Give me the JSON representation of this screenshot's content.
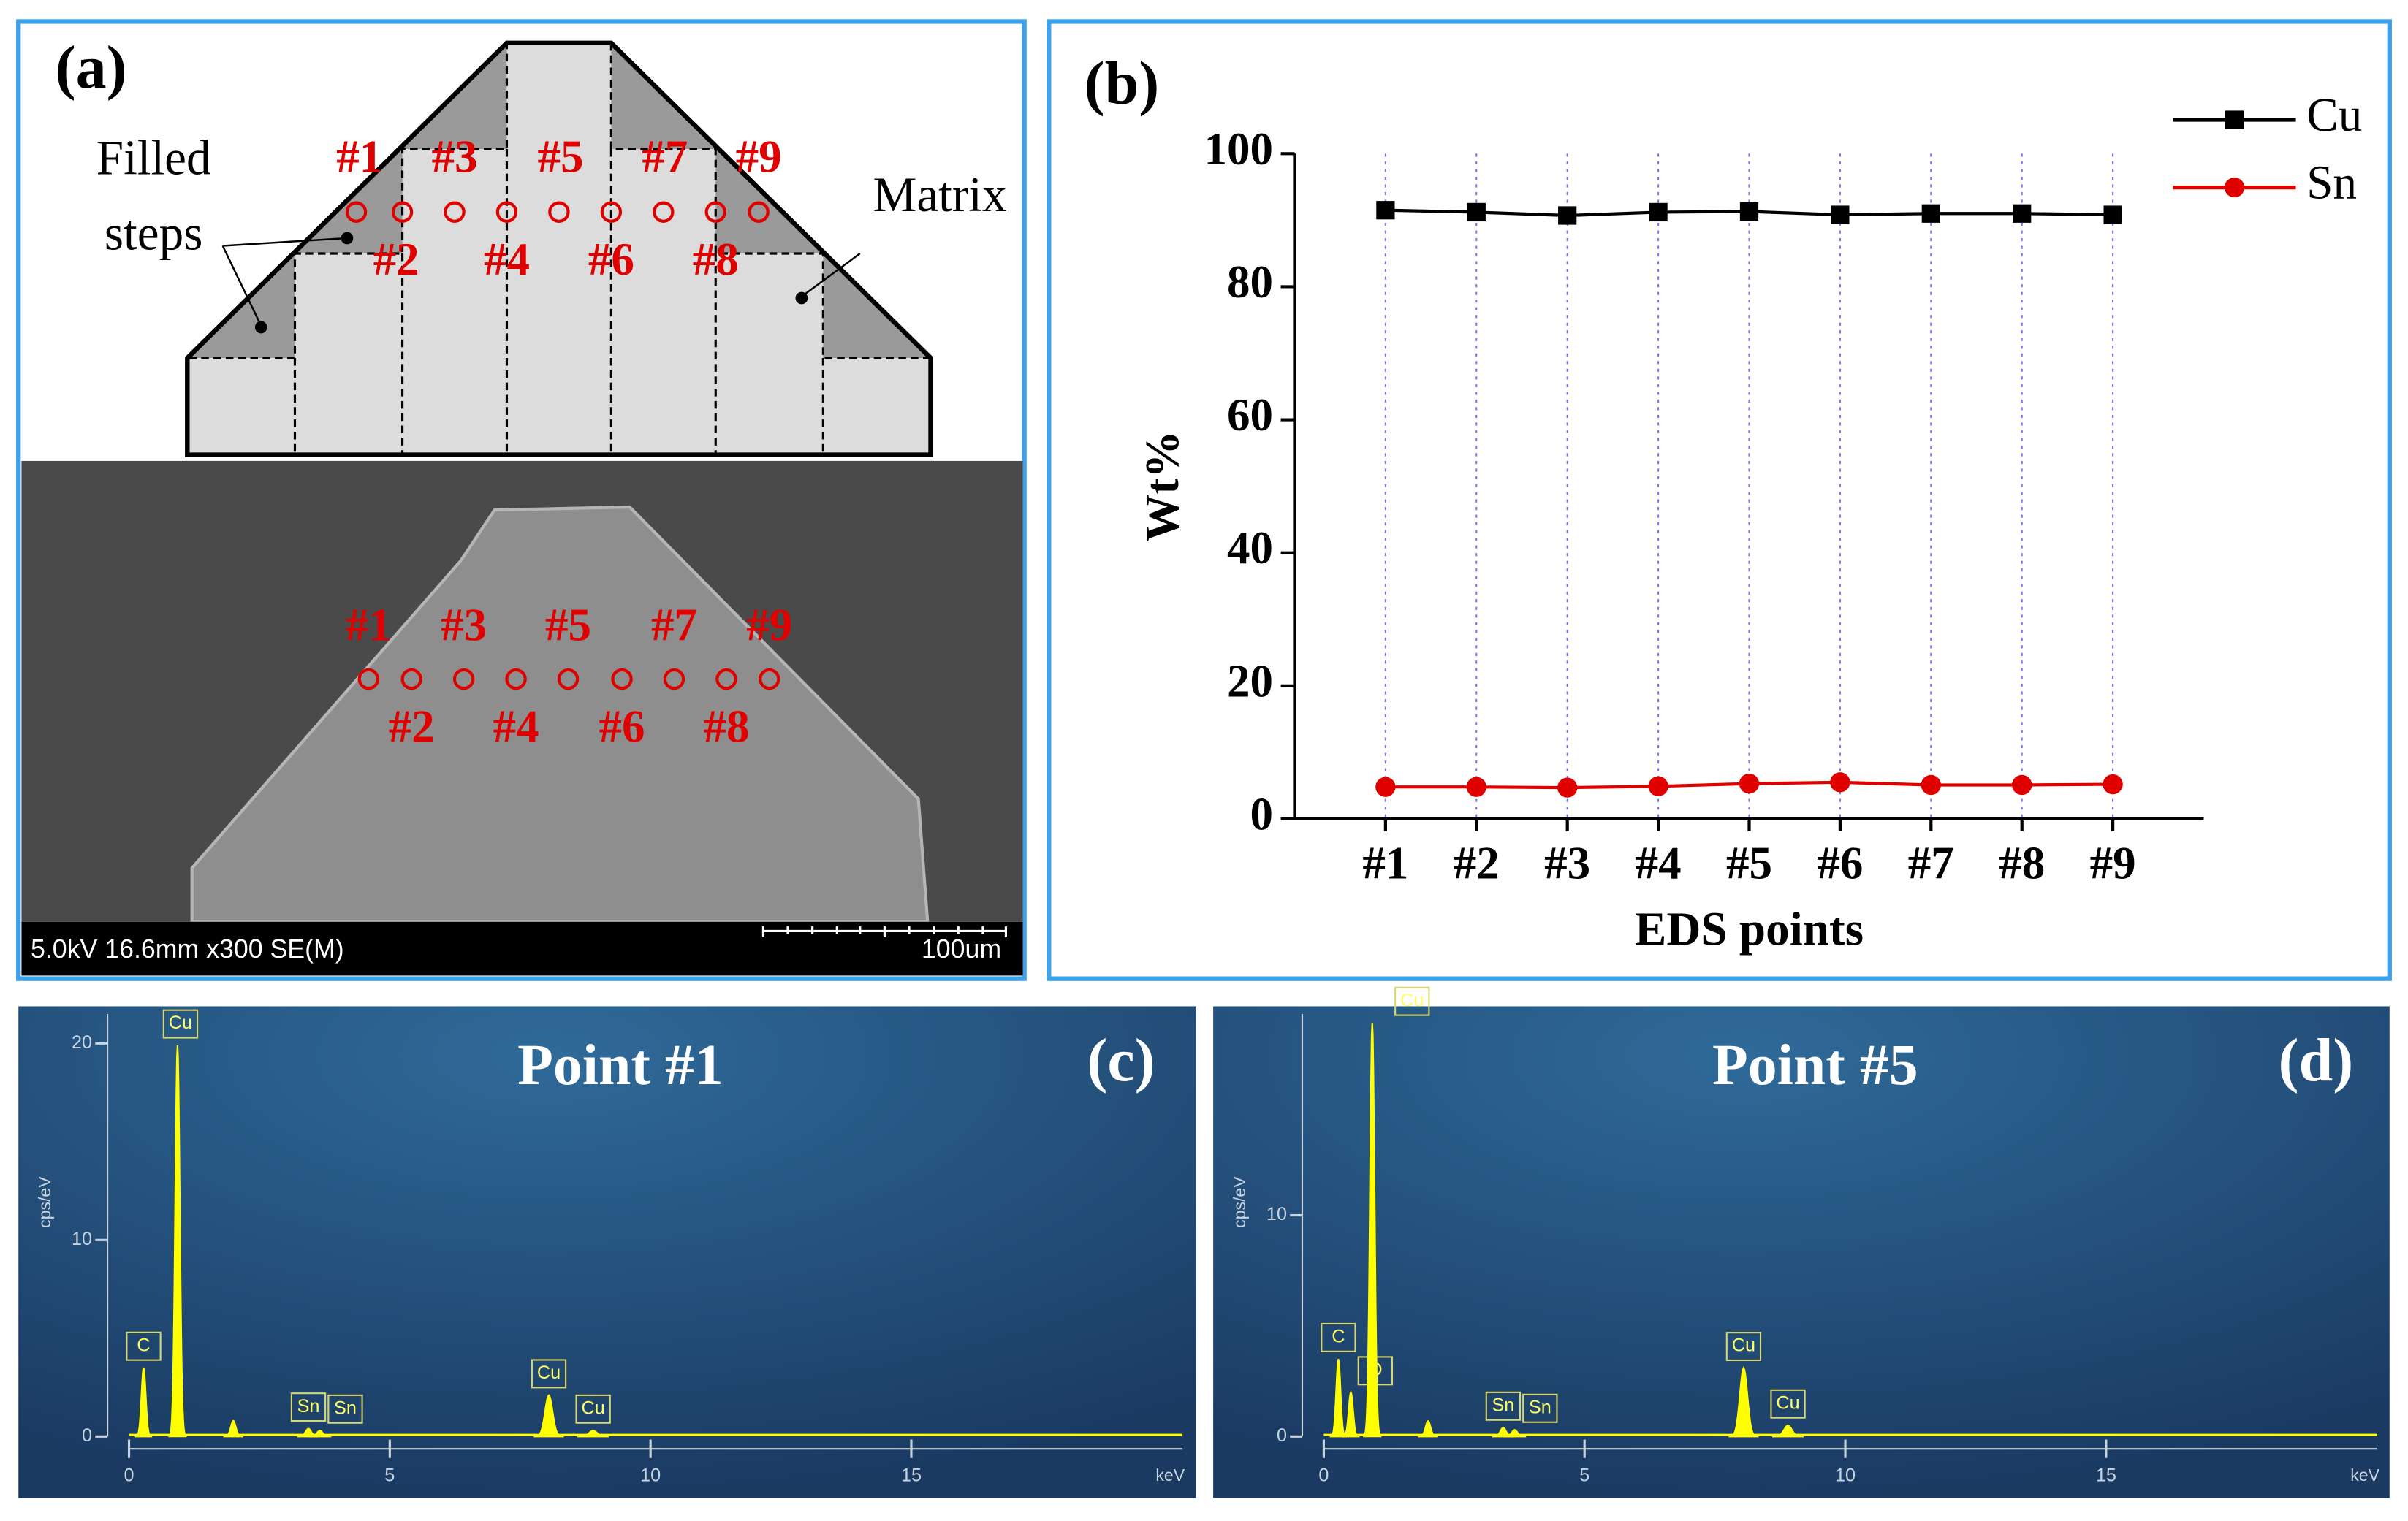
{
  "panel_a": {
    "label": "(a)",
    "filled_label": [
      "Filled",
      "steps"
    ],
    "matrix_label": "Matrix",
    "points_upper": [
      "#1",
      "#3",
      "#5",
      "#7",
      "#9"
    ],
    "points_lower": [
      "#2",
      "#4",
      "#6",
      "#8"
    ],
    "sem_info": "5.0kV 16.6mm x300 SE(M)",
    "scale_bar": "100um"
  },
  "chart_data": [
    {
      "type": "line",
      "panel_label": "(b)",
      "xlabel": "EDS points",
      "ylabel": "Wt%",
      "categories": [
        "#1",
        "#2",
        "#3",
        "#4",
        "#5",
        "#6",
        "#7",
        "#8",
        "#9"
      ],
      "series": [
        {
          "name": "Cu",
          "color": "#000000",
          "marker": "square",
          "values": [
            91.5,
            91.2,
            90.7,
            91.2,
            91.3,
            90.8,
            91.0,
            91.0,
            90.8
          ]
        },
        {
          "name": "Sn",
          "color": "#e00000",
          "marker": "circle",
          "values": [
            4.8,
            4.8,
            4.7,
            4.9,
            5.3,
            5.5,
            5.1,
            5.1,
            5.2
          ]
        }
      ],
      "ylim": [
        0,
        100
      ],
      "yticks": [
        0,
        20,
        40,
        60,
        80,
        100
      ],
      "xgrid": true,
      "legend": "top-right"
    },
    {
      "type": "spectrum",
      "panel_label": "(c)",
      "title": "Point #1",
      "xlabel": "keV",
      "ylabel": "cps/eV",
      "x": [
        0.28,
        0.93,
        2.0,
        3.44,
        3.66,
        8.05,
        8.9
      ],
      "values": [
        3.5,
        19.9,
        0.8,
        0.4,
        0.3,
        2.1,
        0.3
      ],
      "peak_labels": [
        "C",
        "Cu",
        null,
        "Sn",
        "Sn",
        "Cu",
        "Cu"
      ],
      "xlim": [
        0,
        20.2
      ],
      "ylim": [
        0,
        21.5
      ],
      "xticks": [
        0,
        5,
        10,
        15
      ],
      "yticks": [
        0,
        10,
        20
      ],
      "color": "#ffff00"
    },
    {
      "type": "spectrum",
      "panel_label": "(d)",
      "title": "Point #5",
      "xlabel": "keV",
      "ylabel": "cps/eV",
      "x": [
        0.28,
        0.52,
        0.93,
        2.0,
        3.44,
        3.66,
        8.05,
        8.9
      ],
      "values": [
        3.5,
        2.0,
        18.7,
        0.7,
        0.4,
        0.3,
        3.1,
        0.5
      ],
      "peak_labels": [
        "C",
        "O",
        "Cu",
        null,
        "Sn",
        "Sn",
        "Cu",
        "Cu"
      ],
      "xlim": [
        0,
        20.2
      ],
      "ylim": [
        0,
        19.1
      ],
      "xticks": [
        0,
        5,
        10,
        15
      ],
      "yticks": [
        0,
        10
      ],
      "color": "#ffff00"
    }
  ]
}
